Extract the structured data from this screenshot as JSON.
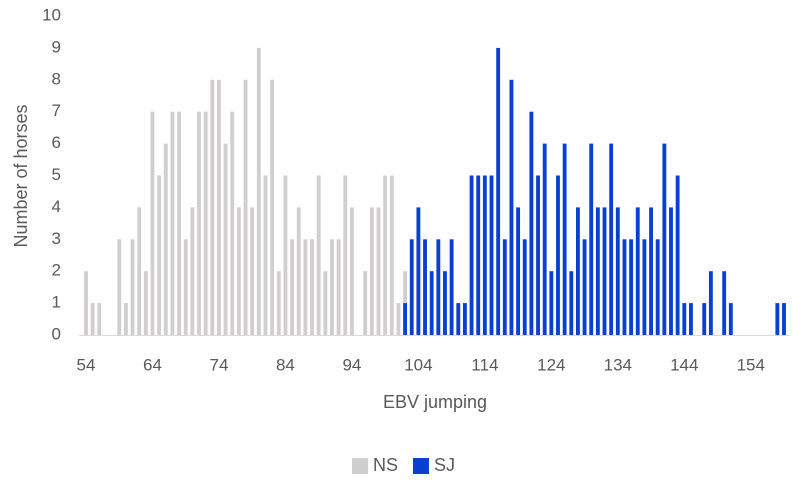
{
  "chart_data": {
    "type": "bar",
    "xlabel": "EBV jumping",
    "ylabel": "Number of horses",
    "ylim": [
      0,
      10
    ],
    "yticks": [
      0,
      1,
      2,
      3,
      4,
      5,
      6,
      7,
      8,
      9,
      10
    ],
    "xticks": [
      "54",
      "64",
      "74",
      "84",
      "94",
      "104",
      "114",
      "124",
      "134",
      "144",
      "154"
    ],
    "xlim": [
      54,
      159
    ],
    "grid": false,
    "legend_position": "bottom",
    "series": [
      {
        "name": "NS",
        "color": "#d0cece",
        "points": [
          {
            "x": 54,
            "y": 2
          },
          {
            "x": 55,
            "y": 1
          },
          {
            "x": 56,
            "y": 1
          },
          {
            "x": 59,
            "y": 3
          },
          {
            "x": 60,
            "y": 1
          },
          {
            "x": 61,
            "y": 3
          },
          {
            "x": 62,
            "y": 4
          },
          {
            "x": 63,
            "y": 2
          },
          {
            "x": 64,
            "y": 7
          },
          {
            "x": 65,
            "y": 5
          },
          {
            "x": 66,
            "y": 6
          },
          {
            "x": 67,
            "y": 7
          },
          {
            "x": 68,
            "y": 7
          },
          {
            "x": 69,
            "y": 3
          },
          {
            "x": 70,
            "y": 4
          },
          {
            "x": 71,
            "y": 7
          },
          {
            "x": 72,
            "y": 7
          },
          {
            "x": 73,
            "y": 8
          },
          {
            "x": 74,
            "y": 8
          },
          {
            "x": 75,
            "y": 6
          },
          {
            "x": 76,
            "y": 7
          },
          {
            "x": 77,
            "y": 4
          },
          {
            "x": 78,
            "y": 8
          },
          {
            "x": 79,
            "y": 4
          },
          {
            "x": 80,
            "y": 9
          },
          {
            "x": 81,
            "y": 5
          },
          {
            "x": 82,
            "y": 8
          },
          {
            "x": 83,
            "y": 2
          },
          {
            "x": 84,
            "y": 5
          },
          {
            "x": 85,
            "y": 3
          },
          {
            "x": 86,
            "y": 4
          },
          {
            "x": 87,
            "y": 3
          },
          {
            "x": 88,
            "y": 3
          },
          {
            "x": 89,
            "y": 5
          },
          {
            "x": 90,
            "y": 2
          },
          {
            "x": 91,
            "y": 3
          },
          {
            "x": 92,
            "y": 3
          },
          {
            "x": 93,
            "y": 5
          },
          {
            "x": 94,
            "y": 4
          },
          {
            "x": 96,
            "y": 2
          },
          {
            "x": 97,
            "y": 4
          },
          {
            "x": 98,
            "y": 4
          },
          {
            "x": 99,
            "y": 5
          },
          {
            "x": 100,
            "y": 5
          },
          {
            "x": 101,
            "y": 1
          },
          {
            "x": 102,
            "y": 2
          }
        ]
      },
      {
        "name": "SJ",
        "color": "#0a3fd4",
        "points": [
          {
            "x": 102,
            "y": 1
          },
          {
            "x": 103,
            "y": 3
          },
          {
            "x": 104,
            "y": 4
          },
          {
            "x": 105,
            "y": 3
          },
          {
            "x": 106,
            "y": 2
          },
          {
            "x": 107,
            "y": 3
          },
          {
            "x": 108,
            "y": 2
          },
          {
            "x": 109,
            "y": 3
          },
          {
            "x": 110,
            "y": 1
          },
          {
            "x": 111,
            "y": 1
          },
          {
            "x": 112,
            "y": 5
          },
          {
            "x": 113,
            "y": 5
          },
          {
            "x": 114,
            "y": 5
          },
          {
            "x": 115,
            "y": 5
          },
          {
            "x": 116,
            "y": 9
          },
          {
            "x": 117,
            "y": 3
          },
          {
            "x": 118,
            "y": 8
          },
          {
            "x": 119,
            "y": 4
          },
          {
            "x": 120,
            "y": 3
          },
          {
            "x": 121,
            "y": 7
          },
          {
            "x": 122,
            "y": 5
          },
          {
            "x": 123,
            "y": 6
          },
          {
            "x": 124,
            "y": 2
          },
          {
            "x": 125,
            "y": 5
          },
          {
            "x": 126,
            "y": 6
          },
          {
            "x": 127,
            "y": 2
          },
          {
            "x": 128,
            "y": 4
          },
          {
            "x": 129,
            "y": 3
          },
          {
            "x": 130,
            "y": 6
          },
          {
            "x": 131,
            "y": 4
          },
          {
            "x": 132,
            "y": 4
          },
          {
            "x": 133,
            "y": 6
          },
          {
            "x": 134,
            "y": 4
          },
          {
            "x": 135,
            "y": 3
          },
          {
            "x": 136,
            "y": 3
          },
          {
            "x": 137,
            "y": 4
          },
          {
            "x": 138,
            "y": 3
          },
          {
            "x": 139,
            "y": 4
          },
          {
            "x": 140,
            "y": 3
          },
          {
            "x": 141,
            "y": 6
          },
          {
            "x": 142,
            "y": 4
          },
          {
            "x": 143,
            "y": 5
          },
          {
            "x": 144,
            "y": 1
          },
          {
            "x": 145,
            "y": 1
          },
          {
            "x": 147,
            "y": 1
          },
          {
            "x": 148,
            "y": 2
          },
          {
            "x": 150,
            "y": 2
          },
          {
            "x": 151,
            "y": 1
          },
          {
            "x": 158,
            "y": 1
          },
          {
            "x": 159,
            "y": 1
          }
        ]
      }
    ]
  }
}
